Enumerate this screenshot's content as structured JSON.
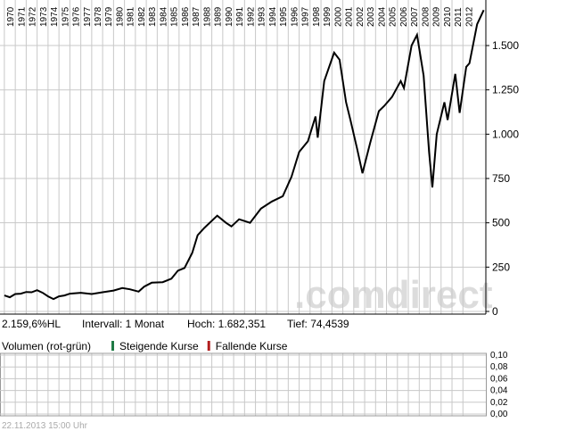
{
  "chart_data": [
    {
      "type": "line",
      "xticks": [
        1970,
        1971,
        1972,
        1973,
        1974,
        1975,
        1976,
        1977,
        1978,
        1979,
        1980,
        1981,
        1982,
        1983,
        1984,
        1985,
        1986,
        1987,
        1988,
        1989,
        1990,
        1991,
        1992,
        1993,
        1994,
        1995,
        1996,
        1997,
        1998,
        1999,
        2000,
        2001,
        2002,
        2003,
        2004,
        2005,
        2006,
        2007,
        2008,
        2009,
        2010,
        2011,
        2012
      ],
      "xlim": [
        1969.6,
        2014.1
      ],
      "ylim": [
        0,
        1757
      ],
      "yticks": [
        0,
        250,
        500,
        750,
        {
          "value": 1000,
          "label": "1.000"
        },
        {
          "value": 1250,
          "label": "1.250"
        },
        {
          "value": 1500,
          "label": "1.500"
        }
      ],
      "grid": true,
      "series": [
        {
          "color": "#000000",
          "x": [
            1970,
            1970.5,
            1971,
            1971.5,
            1972,
            1972.5,
            1973,
            1973.5,
            1974,
            1974.5,
            1975,
            1975.5,
            1976,
            1977,
            1978,
            1979,
            1980,
            1980.8,
            1981.5,
            1982.3,
            1982.8,
            1983.5,
            1984.5,
            1985.3,
            1985.9,
            1986.5,
            1987.2,
            1987.7,
            1988.3,
            1989.5,
            1990.3,
            1990.8,
            1991.5,
            1992.5,
            1993.5,
            1994.5,
            1995.5,
            1996.3,
            1997,
            1997.8,
            1998.5,
            1998.7,
            1999.3,
            2000.2,
            2000.7,
            2001.3,
            2001.7,
            2002.3,
            2002.8,
            2003.5,
            2004.3,
            2004.8,
            2005.5,
            2006.3,
            2006.6,
            2007.3,
            2007.8,
            2008.4,
            2008.9,
            2009.2,
            2009.6,
            2010.3,
            2010.6,
            2011.3,
            2011.7,
            2012.3,
            2012.6,
            2013.3,
            2013.9
          ],
          "values": [
            90,
            80,
            98,
            100,
            110,
            108,
            120,
            105,
            85,
            70,
            85,
            90,
            100,
            105,
            98,
            108,
            118,
            132,
            125,
            112,
            140,
            162,
            165,
            185,
            230,
            245,
            330,
            430,
            470,
            540,
            500,
            480,
            520,
            500,
            580,
            620,
            650,
            760,
            900,
            960,
            1100,
            980,
            1300,
            1460,
            1420,
            1180,
            1080,
            920,
            780,
            950,
            1130,
            1160,
            1210,
            1300,
            1260,
            1500,
            1560,
            1330,
            900,
            700,
            1000,
            1180,
            1080,
            1340,
            1120,
            1380,
            1400,
            1620,
            1700
          ]
        }
      ]
    },
    {
      "type": "bar",
      "title": "Volumen (rot-grün)",
      "categories": [],
      "series": [
        {
          "name": "Steigende Kurse",
          "color": "#1f7a45",
          "values": []
        },
        {
          "name": "Fallende Kurse",
          "color": "#b21e1e",
          "values": []
        }
      ],
      "ylim": [
        0,
        0.1
      ],
      "yticks": [
        {
          "value": 0.1,
          "label": "0,10"
        },
        {
          "value": 0.08,
          "label": "0,08"
        },
        {
          "value": 0.06,
          "label": "0,06"
        },
        {
          "value": 0.04,
          "label": "0,04"
        },
        {
          "value": 0.02,
          "label": "0,02"
        },
        {
          "value": 0,
          "label": "0,00"
        }
      ],
      "grid": true
    }
  ],
  "info": [
    "2.159,6%HL",
    "Intervall: 1 Monat",
    "Hoch: 1.682,351",
    "Tief: 74,4539"
  ],
  "watermark": ".comdirect",
  "timestamp": "22.11.2013 15:00 Uhr"
}
